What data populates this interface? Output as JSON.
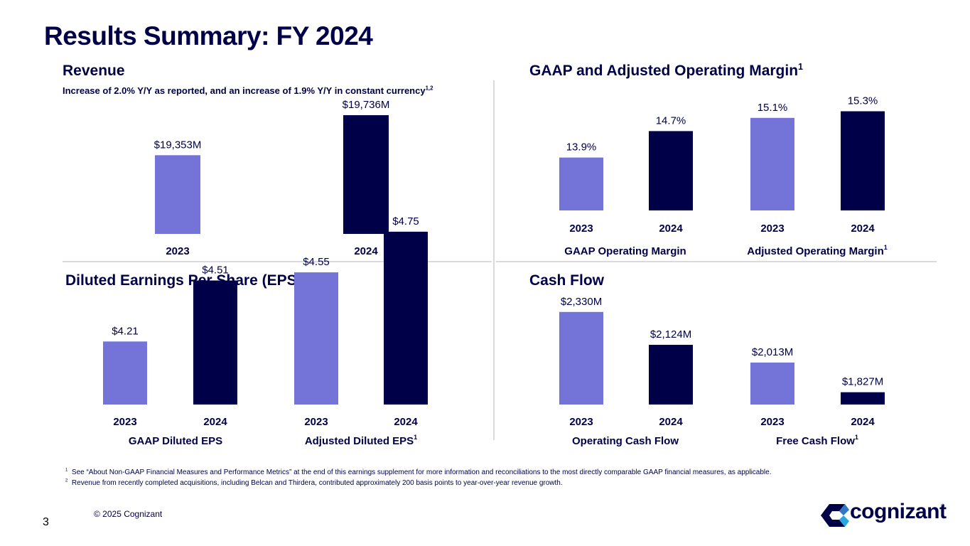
{
  "slide": {
    "title": "Results Summary: FY 2024",
    "page_number": "3",
    "copyright": "© 2025 Cognizant",
    "brand": "cognizant",
    "brand_mark": "®"
  },
  "colors": {
    "light": "#7373d8",
    "dark": "#000048"
  },
  "panels": {
    "revenue": {
      "title": "Revenue",
      "subtitle": "Increase of 2.0% Y/Y as reported, and an increase of 1.9% Y/Y in constant currency",
      "subtitle_sup": "1,2"
    },
    "margin": {
      "title": "GAAP and Adjusted Operating Margin",
      "title_sup": "1"
    },
    "eps": {
      "title": "Diluted Earnings Per Share (EPS)"
    },
    "cash": {
      "title": "Cash Flow"
    }
  },
  "footnotes": [
    {
      "num": "1",
      "text": "See “About Non-GAAP Financial Measures and Performance Metrics” at the end of this earnings supplement for more information and reconciliations to the most directly comparable GAAP financial measures, as applicable."
    },
    {
      "num": "2",
      "text": "Revenue from recently completed acquisitions, including Belcan and Thirdera, contributed approximately 200 basis points to year-over-year revenue growth."
    }
  ],
  "chart_data": [
    {
      "type": "bar",
      "id": "revenue",
      "categories": [
        "2023",
        "2024"
      ],
      "values": [
        19353,
        19736
      ],
      "labels": [
        "$19,353M",
        "$19,736M"
      ],
      "unit": "$M"
    },
    {
      "type": "bar",
      "id": "gaap-margin",
      "group_label": "GAAP Operating Margin",
      "categories": [
        "2023",
        "2024"
      ],
      "values": [
        13.9,
        14.7
      ],
      "labels": [
        "13.9%",
        "14.7%"
      ],
      "unit": "%"
    },
    {
      "type": "bar",
      "id": "adjusted-margin",
      "group_label": "Adjusted Operating Margin",
      "group_label_sup": "1",
      "categories": [
        "2023",
        "2024"
      ],
      "values": [
        15.1,
        15.3
      ],
      "labels": [
        "15.1%",
        "15.3%"
      ],
      "unit": "%"
    },
    {
      "type": "bar",
      "id": "gaap-eps",
      "group_label": "GAAP Diluted EPS",
      "categories": [
        "2023",
        "2024"
      ],
      "values": [
        4.21,
        4.51
      ],
      "labels": [
        "$4.21",
        "$4.51"
      ],
      "unit": "$"
    },
    {
      "type": "bar",
      "id": "adjusted-eps",
      "group_label": "Adjusted Diluted EPS",
      "group_label_sup": "1",
      "categories": [
        "2023",
        "2024"
      ],
      "values": [
        4.55,
        4.75
      ],
      "labels": [
        "$4.55",
        "$4.75"
      ],
      "unit": "$"
    },
    {
      "type": "bar",
      "id": "operating-cash-flow",
      "group_label": "Operating Cash Flow",
      "categories": [
        "2023",
        "2024"
      ],
      "values": [
        2330,
        2124
      ],
      "labels": [
        "$2,330M",
        "$2,124M"
      ],
      "unit": "$M"
    },
    {
      "type": "bar",
      "id": "free-cash-flow",
      "group_label": "Free Cash Flow",
      "group_label_sup": "1",
      "categories": [
        "2023",
        "2024"
      ],
      "values": [
        2013,
        1827
      ],
      "labels": [
        "$2,013M",
        "$1,827M"
      ],
      "unit": "$M"
    }
  ]
}
